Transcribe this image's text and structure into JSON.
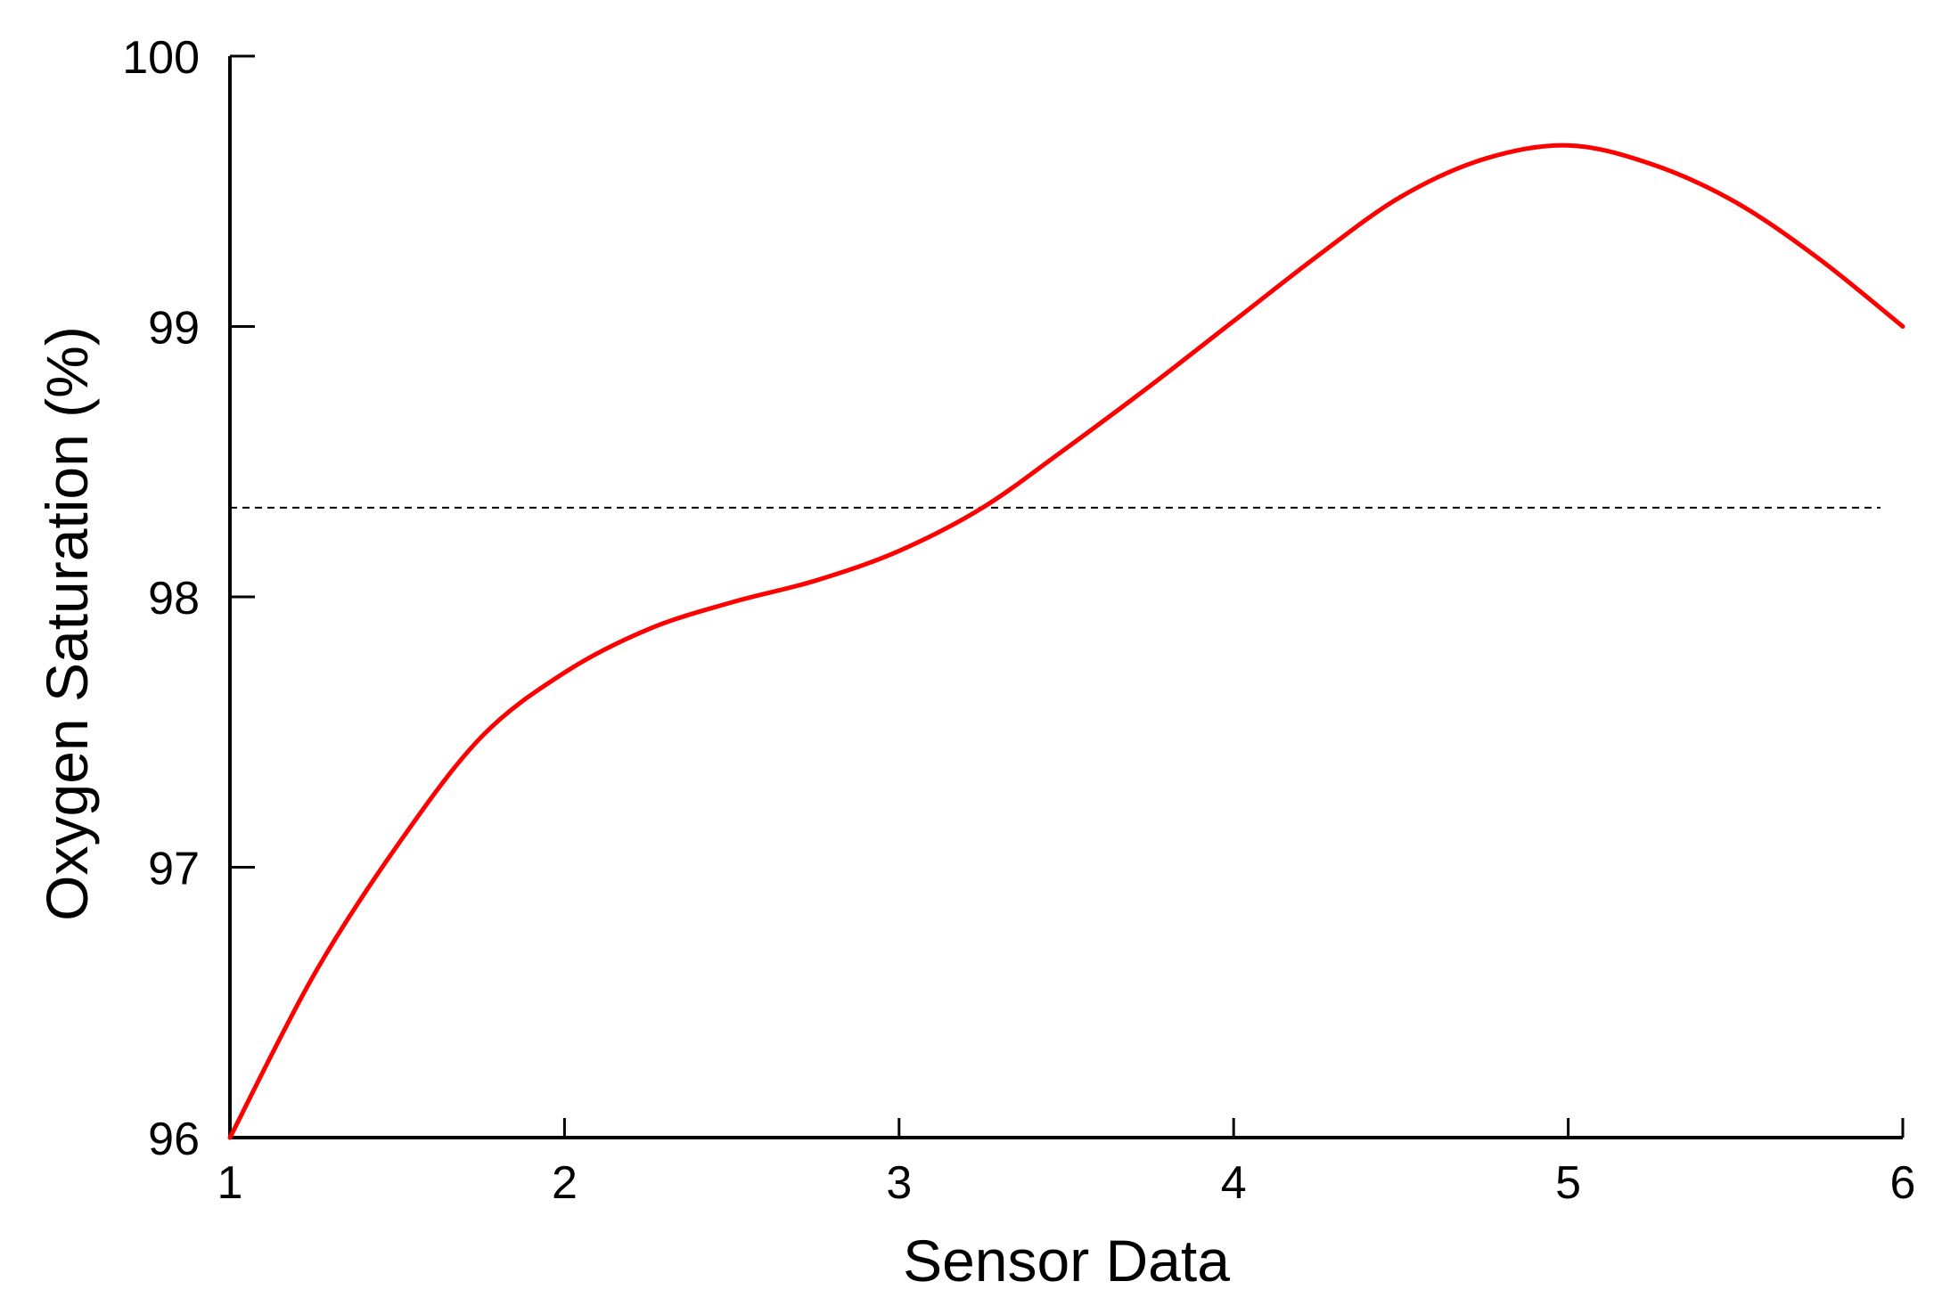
{
  "chart_data": {
    "type": "line",
    "title": "",
    "xlabel": "Sensor Data",
    "ylabel": "Oxygen Saturation (%)",
    "xlim": [
      1,
      6
    ],
    "ylim": [
      96,
      100
    ],
    "xticks": [
      1,
      2,
      3,
      4,
      5,
      6
    ],
    "yticks": [
      96,
      97,
      98,
      99,
      100
    ],
    "xtick_labels": [
      "1",
      "2",
      "3",
      "4",
      "5",
      "6"
    ],
    "ytick_labels": [
      "96",
      "97",
      "98",
      "99",
      "100"
    ],
    "grid": false,
    "legend": "none",
    "series": [
      {
        "color": "#ff0000",
        "x": [
          1.0,
          1.25,
          1.5,
          1.75,
          2.0,
          2.25,
          2.5,
          2.75,
          3.0,
          3.25,
          3.5,
          3.75,
          4.0,
          4.25,
          4.5,
          4.75,
          5.0,
          5.25,
          5.5,
          5.75,
          6.0
        ],
        "y": [
          96.0,
          96.6,
          97.08,
          97.48,
          97.72,
          97.88,
          97.98,
          98.06,
          98.17,
          98.33,
          98.55,
          98.78,
          99.02,
          99.26,
          99.48,
          99.62,
          99.67,
          99.6,
          99.46,
          99.25,
          99.0
        ]
      }
    ],
    "reference_lines": [
      {
        "axis": "y",
        "value": 98.33,
        "style": "dashed",
        "color": "#000000"
      }
    ]
  }
}
